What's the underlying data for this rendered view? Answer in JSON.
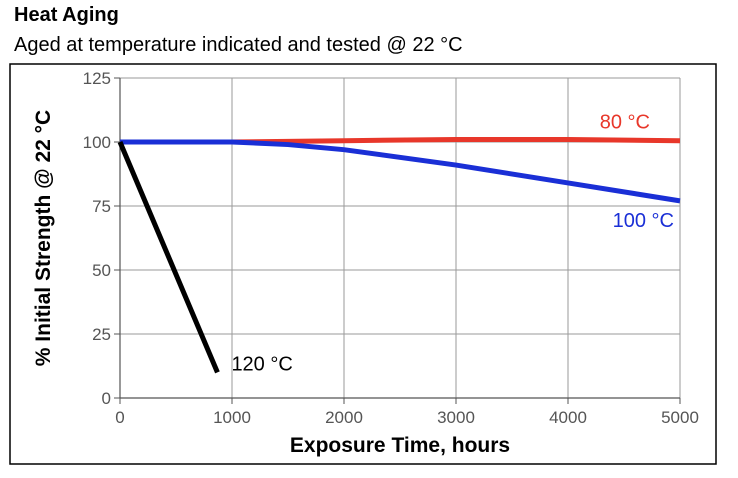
{
  "chart_data": {
    "type": "line",
    "title": "Heat Aging",
    "subtitle": "Aged at temperature indicated and tested @ 22 °C",
    "xlabel": "Exposure Time, hours",
    "ylabel": "% Initial Strength @ 22 °C",
    "xlim": [
      0,
      5000
    ],
    "ylim": [
      0,
      125
    ],
    "xticks": [
      0,
      1000,
      2000,
      3000,
      4000,
      5000
    ],
    "yticks": [
      0,
      25,
      50,
      75,
      100,
      125
    ],
    "grid": true,
    "series": [
      {
        "name": "80 °C",
        "color": "#e8372a",
        "x": [
          0,
          1000,
          2000,
          3000,
          4000,
          5000
        ],
        "y": [
          100,
          100,
          100.5,
          101,
          101,
          100.5
        ]
      },
      {
        "name": "100 °C",
        "color": "#1a2fd6",
        "x": [
          0,
          500,
          1000,
          1500,
          2000,
          3000,
          4000,
          5000
        ],
        "y": [
          100,
          100,
          100,
          99,
          97,
          91,
          84,
          77
        ]
      },
      {
        "name": "120 °C",
        "color": "#000000",
        "x": [
          0,
          870
        ],
        "y": [
          100,
          10
        ]
      }
    ]
  }
}
